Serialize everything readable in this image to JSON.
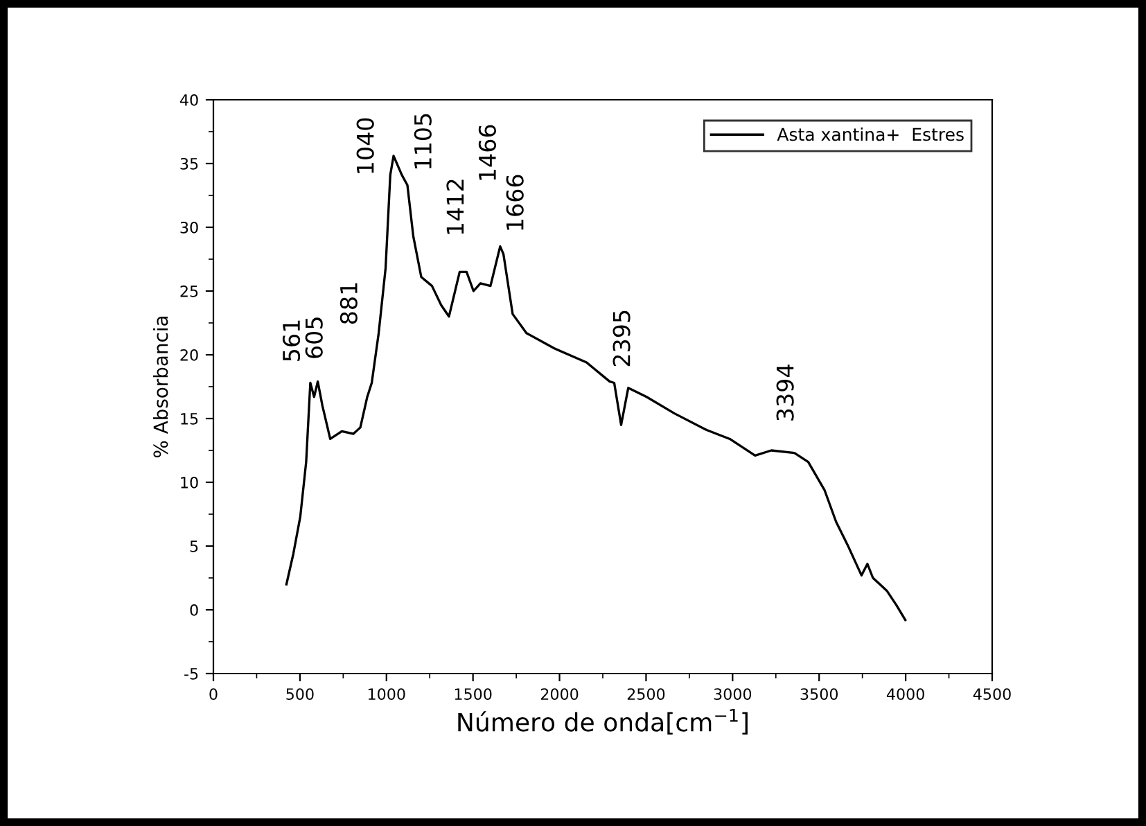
{
  "chart_data": {
    "type": "line",
    "xlabel": "Número de onda[cm$^{−1}$]",
    "ylabel": "% Absorbancia",
    "xlim": [
      0,
      4500
    ],
    "xticks": [
      0,
      500,
      1000,
      1500,
      2000,
      2500,
      3000,
      3500,
      4000,
      4500
    ],
    "ylim": [
      -5,
      40
    ],
    "yticks": [
      -5,
      0,
      5,
      10,
      15,
      20,
      25,
      30,
      35,
      40
    ],
    "grid": false,
    "legend": "top right",
    "marker": "none",
    "line_style": "solid",
    "series": [
      {
        "name": "Asta xantina+  Estres",
        "color": "#000000",
        "x": [
          422,
          462,
          502,
          536,
          560,
          582,
          603,
          630,
          675,
          742,
          809,
          849,
          889,
          915,
          955,
          995,
          1022,
          1041,
          1089,
          1121,
          1155,
          1201,
          1263,
          1316,
          1361,
          1423,
          1463,
          1503,
          1543,
          1601,
          1657,
          1676,
          1729,
          1809,
          1970,
          2156,
          2290,
          2316,
          2356,
          2397,
          2503,
          2664,
          2850,
          2984,
          3130,
          3224,
          3357,
          3437,
          3531,
          3598,
          3664,
          3745,
          3779,
          3811,
          3891,
          3945,
          3998
        ],
        "values": [
          2.0,
          4.4,
          7.3,
          11.6,
          17.8,
          16.7,
          17.9,
          16.0,
          13.4,
          14.0,
          13.8,
          14.3,
          16.7,
          17.8,
          21.7,
          26.8,
          34.1,
          35.6,
          34.1,
          33.3,
          29.3,
          26.1,
          25.4,
          23.9,
          23.0,
          26.5,
          26.5,
          25.0,
          25.6,
          25.4,
          28.5,
          27.9,
          23.2,
          21.7,
          20.5,
          19.4,
          17.9,
          17.8,
          14.5,
          17.4,
          16.7,
          15.4,
          14.1,
          13.4,
          12.1,
          12.5,
          12.3,
          11.6,
          9.4,
          6.9,
          5.1,
          2.7,
          3.6,
          2.5,
          1.5,
          0.4,
          -0.8
        ]
      }
    ],
    "annotations": [
      "561",
      "605",
      "881",
      "1040",
      "1105",
      "1412",
      "1466",
      "1666",
      "2395",
      "3394"
    ]
  }
}
